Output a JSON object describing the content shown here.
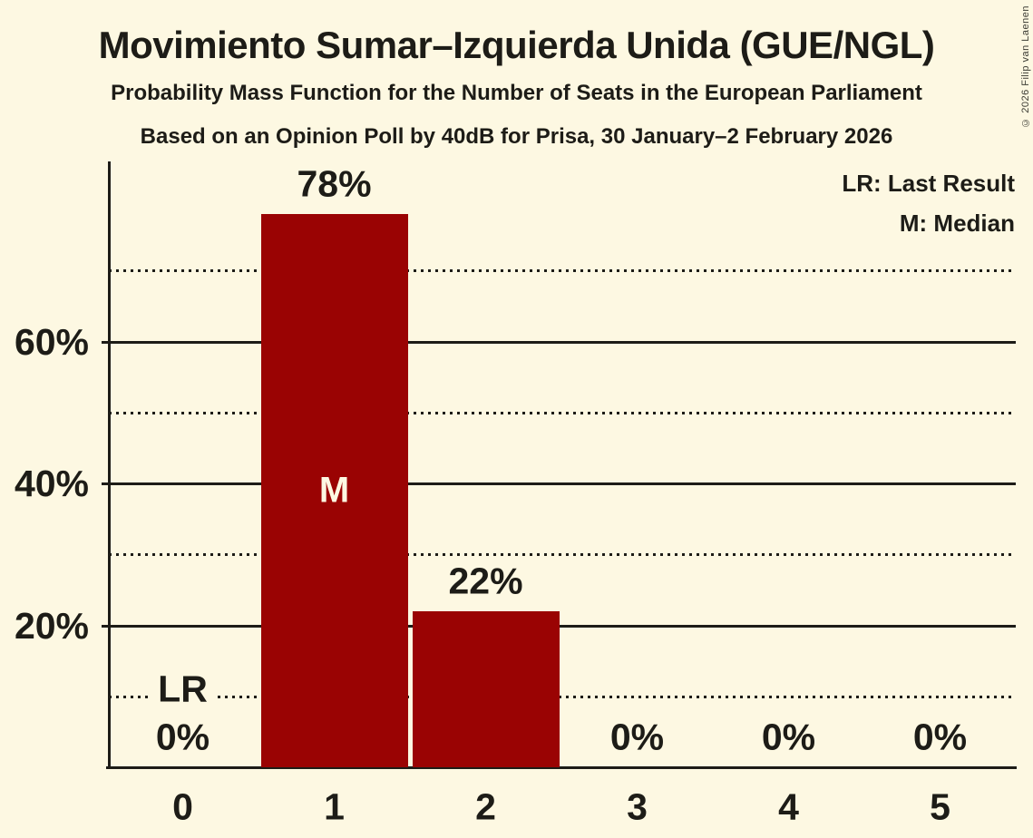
{
  "header": {
    "title": "Movimiento Sumar–Izquierda Unida (GUE/NGL)",
    "subtitle": "Probability Mass Function for the Number of Seats in the European Parliament",
    "poll_info": "Based on an Opinion Poll by 40dB for Prisa, 30 January–2 February 2026"
  },
  "legend": {
    "lr": "LR: Last Result",
    "m": "M: Median"
  },
  "annotations": {
    "lr": "LR",
    "m": "M"
  },
  "footer": {
    "copyright": "© 2026 Filip van Laenen"
  },
  "colors": {
    "background": "#fdf8e2",
    "bar": "#9a0303",
    "text": "#1d1c17"
  },
  "chart_data": {
    "type": "bar",
    "title": "Movimiento Sumar–Izquierda Unida (GUE/NGL)",
    "subtitle": "Probability Mass Function for the Number of Seats in the European Parliament",
    "source_line": "Based on an Opinion Poll by 40dB for Prisa, 30 January–2 February 2026",
    "categories": [
      "0",
      "1",
      "2",
      "3",
      "4",
      "5"
    ],
    "values": [
      0,
      78,
      22,
      0,
      0,
      0
    ],
    "bar_labels": [
      "0%",
      "78%",
      "22%",
      "0%",
      "0%",
      "0%"
    ],
    "median_category": "1",
    "last_result_category": "0",
    "xlabel": "",
    "ylabel": "",
    "ylim": [
      0,
      85
    ],
    "ytick_labels": [
      {
        "value": 20,
        "label": "20%"
      },
      {
        "value": 40,
        "label": "40%"
      },
      {
        "value": 60,
        "label": "60%"
      }
    ],
    "solid_gridlines": [
      20,
      40,
      60
    ],
    "dotted_gridlines": [
      10,
      30,
      50,
      70
    ],
    "grid": true,
    "legend_position": "top-right"
  }
}
